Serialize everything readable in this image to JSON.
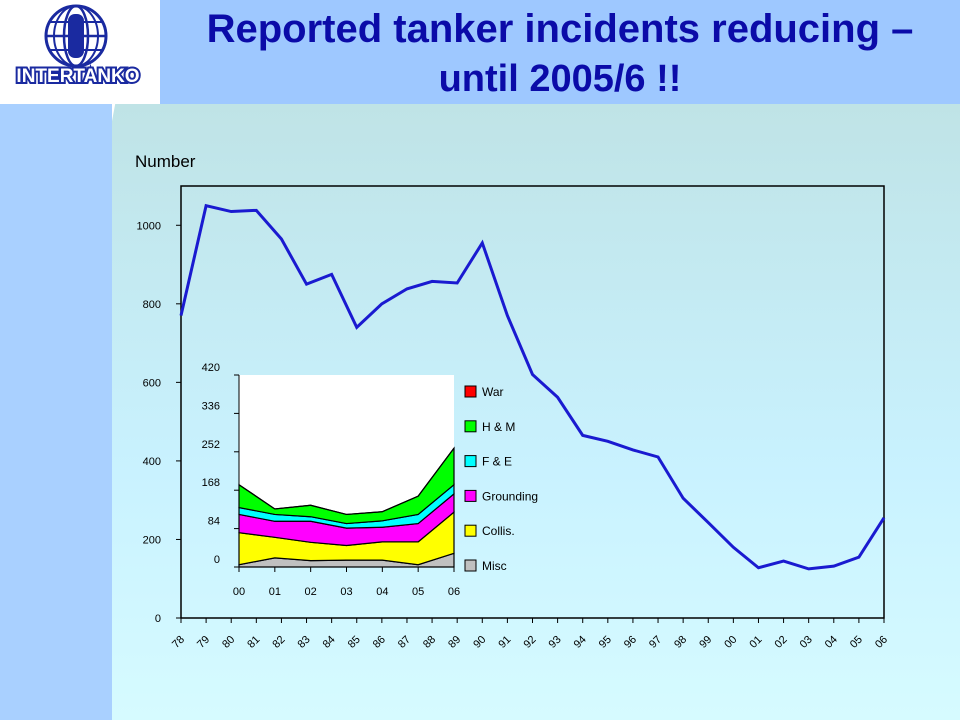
{
  "slide": {
    "title_line1": "Reported tanker incidents reducing –",
    "title_line2": "until 2005/6 !!",
    "logo_text": "INTERTANKO"
  },
  "colors": {
    "title": "#0b0ba8",
    "main_line": "#1a1ad0",
    "title_band": "#9ec8ff"
  },
  "chart_data": [
    {
      "type": "line",
      "ylabel": "Number",
      "ylim": [
        0,
        1100
      ],
      "yticks": [
        0,
        200,
        400,
        600,
        800,
        1000
      ],
      "x": [
        "78",
        "79",
        "80",
        "81",
        "82",
        "83",
        "84",
        "85",
        "86",
        "87",
        "88",
        "89",
        "90",
        "91",
        "92",
        "93",
        "94",
        "95",
        "96",
        "97",
        "98",
        "99",
        "00",
        "01",
        "02",
        "03",
        "04",
        "05",
        "06"
      ],
      "values": [
        770,
        1050,
        1035,
        1038,
        965,
        850,
        875,
        740,
        800,
        838,
        857,
        853,
        955,
        770,
        620,
        562,
        465,
        450,
        428,
        410,
        305,
        243,
        180,
        128,
        145,
        125,
        132,
        155,
        255
      ],
      "grid": false
    },
    {
      "type": "area",
      "stacked": true,
      "x": [
        "00",
        "01",
        "02",
        "03",
        "04",
        "05",
        "06"
      ],
      "ylim": [
        0,
        420
      ],
      "yticks": [
        0,
        84,
        168,
        252,
        336,
        420
      ],
      "series": [
        {
          "name": "Misc",
          "color": "#c0c0c0",
          "values": [
            5,
            20,
            14,
            15,
            15,
            5,
            30
          ]
        },
        {
          "name": "Collis.",
          "color": "#ffff00",
          "values": [
            70,
            45,
            40,
            32,
            40,
            50,
            90
          ]
        },
        {
          "name": "Grounding",
          "color": "#ff00ff",
          "values": [
            40,
            35,
            46,
            38,
            32,
            40,
            40
          ]
        },
        {
          "name": "F & E",
          "color": "#00ffff",
          "values": [
            15,
            15,
            10,
            10,
            14,
            20,
            20
          ]
        },
        {
          "name": "H & M",
          "color": "#00ff00",
          "values": [
            50,
            12,
            25,
            20,
            20,
            40,
            80
          ]
        },
        {
          "name": "War",
          "color": "#ff0000",
          "values": [
            0,
            0,
            0,
            0,
            0,
            0,
            0
          ]
        }
      ],
      "legend_order": [
        "War",
        "H & M",
        "F & E",
        "Grounding",
        "Collis.",
        "Misc"
      ],
      "legend": "right"
    }
  ]
}
